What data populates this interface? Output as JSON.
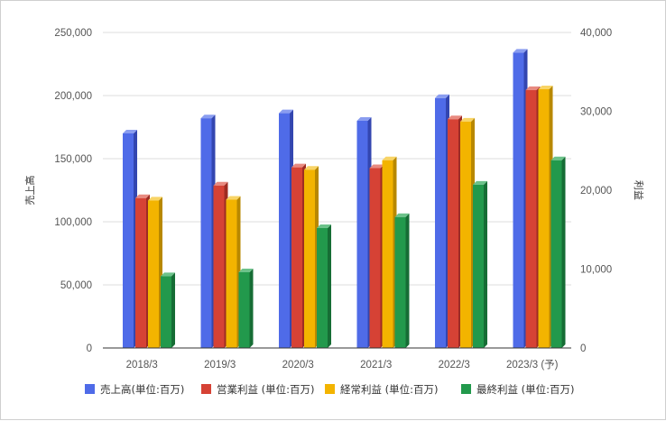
{
  "chart_data": {
    "type": "bar",
    "style": "3d-clustered-column",
    "categories": [
      "2018/3",
      "2019/3",
      "2020/3",
      "2021/3",
      "2022/3",
      "2023/3 (予)"
    ],
    "y_left": {
      "label": "売上高",
      "ylim": [
        0,
        250000
      ],
      "ticks": [
        "0",
        "50,000",
        "100,000",
        "150,000",
        "200,000",
        "250,000"
      ],
      "tick_values": [
        0,
        50000,
        100000,
        150000,
        200000,
        250000
      ]
    },
    "y_right": {
      "label": "利益",
      "ylim": [
        0,
        40000
      ],
      "ticks": [
        "0",
        "10,000",
        "20,000",
        "30,000",
        "40,000"
      ],
      "tick_values": [
        0,
        10000,
        20000,
        30000,
        40000
      ]
    },
    "grid": true,
    "legend_position": "bottom",
    "series": [
      {
        "name": "売上高(単位:百万)",
        "axis": "left",
        "color": "#4F6BE8",
        "side": "#3346b0",
        "top": "#8a9df0",
        "values": [
          170000,
          182000,
          186000,
          180000,
          198000,
          234000
        ]
      },
      {
        "name": "営業利益 (単位:百万)",
        "axis": "right",
        "color": "#D64235",
        "side": "#9e2c22",
        "top": "#e88a80",
        "values": [
          19000,
          20600,
          22900,
          22800,
          29000,
          32700
        ]
      },
      {
        "name": "経常利益 (単位:百万)",
        "axis": "right",
        "color": "#F3B400",
        "side": "#b88800",
        "top": "#f8d466",
        "values": [
          18700,
          18800,
          22600,
          23800,
          28700,
          32800
        ]
      },
      {
        "name": "最終利益 (単位:百万)",
        "axis": "right",
        "color": "#22994C",
        "side": "#166d35",
        "top": "#6cc28a",
        "values": [
          9100,
          9600,
          15200,
          16600,
          20700,
          23800
        ]
      }
    ]
  }
}
